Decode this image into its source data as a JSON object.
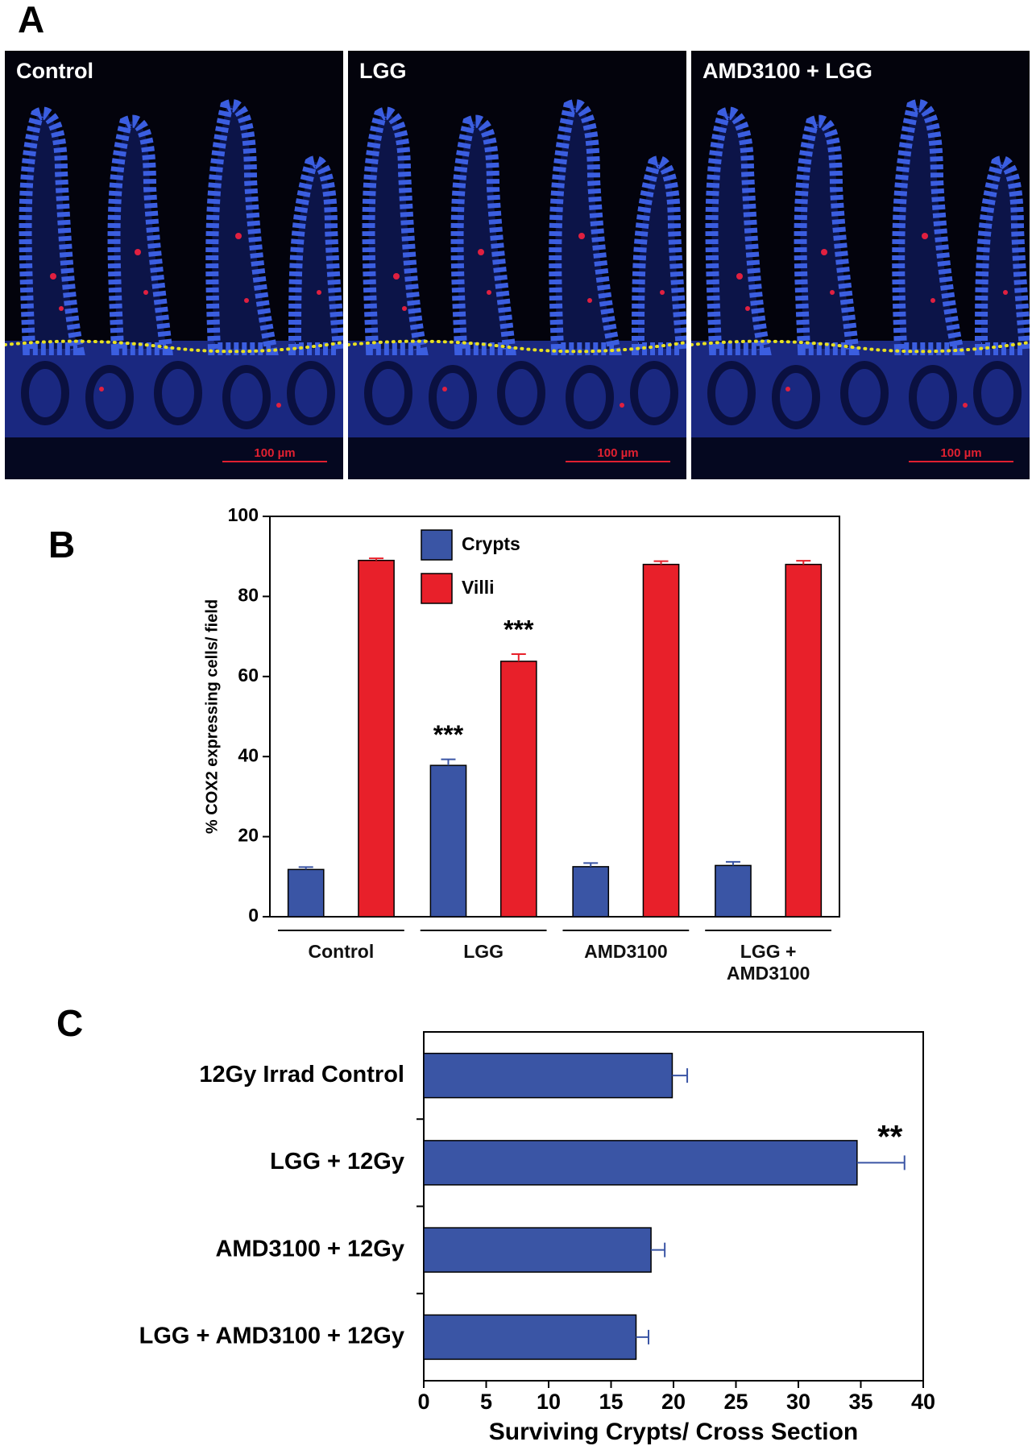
{
  "panel_a": {
    "label": "A",
    "panels": [
      {
        "title": "Control",
        "scale_bar": "100 µm"
      },
      {
        "title": "LGG",
        "scale_bar": "100 µm"
      },
      {
        "title": "AMD3100 + LGG",
        "scale_bar": "100 µm"
      }
    ]
  },
  "chart_data": [
    {
      "type": "bar",
      "panel_label": "B",
      "ylabel": "% COX2 expressing cells/ field",
      "categories": [
        "Control",
        "LGG",
        "AMD3100",
        "LGG + AMD3100"
      ],
      "series": [
        {
          "name": "Crypts",
          "color": "#3a55a5",
          "values": [
            11.8,
            37.8,
            12.5,
            12.8
          ],
          "errors": [
            0.6,
            1.5,
            0.9,
            0.9
          ],
          "significance": [
            null,
            "***",
            null,
            null
          ]
        },
        {
          "name": "Villi",
          "color": "#e8202a",
          "values": [
            89,
            63.8,
            88,
            88
          ],
          "errors": [
            0.5,
            1.8,
            0.8,
            0.9
          ],
          "significance": [
            null,
            "***",
            null,
            null
          ]
        }
      ],
      "ylim": [
        0,
        100
      ],
      "yticks": [
        0,
        20,
        40,
        60,
        80,
        100
      ],
      "legend": "upper center"
    },
    {
      "type": "barh",
      "panel_label": "C",
      "xlabel": "Surviving Crypts/ Cross Section",
      "categories": [
        "12Gy Irrad Control",
        "LGG + 12Gy",
        "AMD3100 + 12Gy",
        "LGG + AMD3100 + 12Gy"
      ],
      "values": [
        19.9,
        34.7,
        18.2,
        17.0
      ],
      "errors": [
        1.2,
        3.8,
        1.1,
        1.0
      ],
      "significance": [
        null,
        "**",
        null,
        null
      ],
      "color": "#3a55a5",
      "xlim": [
        0,
        40
      ],
      "xticks": [
        0,
        5,
        10,
        15,
        20,
        25,
        30,
        35,
        40
      ]
    }
  ]
}
